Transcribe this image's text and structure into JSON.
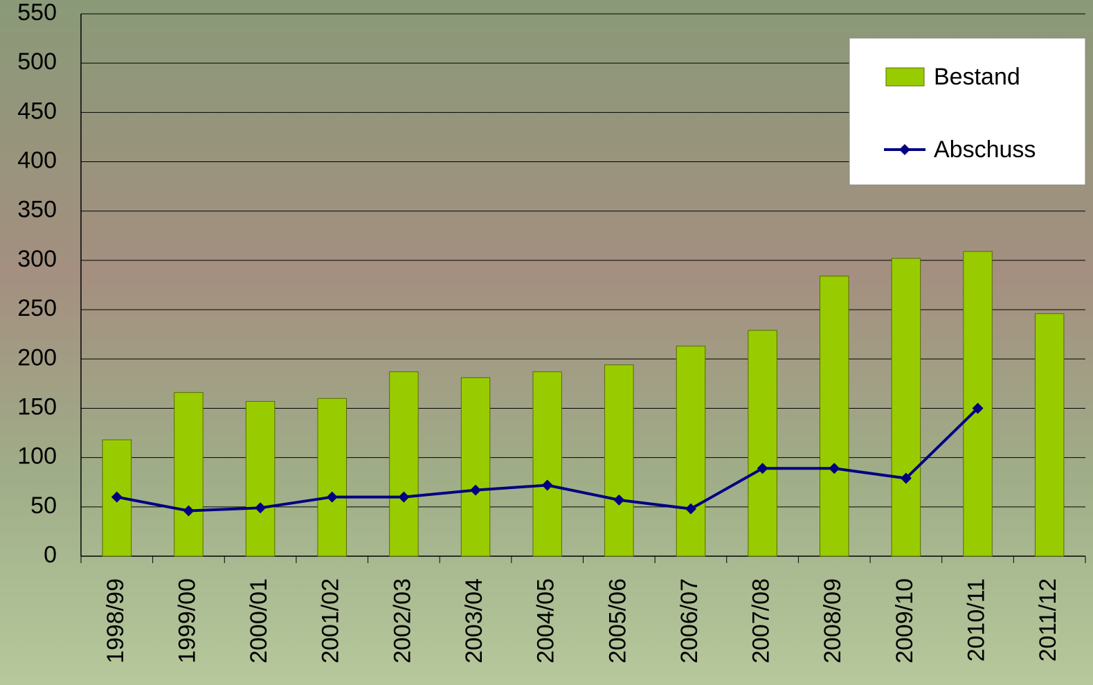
{
  "chart_data": {
    "type": "bar-line",
    "categories": [
      "1998/99",
      "1999/00",
      "2000/01",
      "2001/02",
      "2002/03",
      "2003/04",
      "2004/05",
      "2005/06",
      "2006/07",
      "2007/08",
      "2008/09",
      "2009/10",
      "2010/11",
      "2011/12"
    ],
    "series": [
      {
        "name": "Bestand",
        "type": "bar",
        "color": "#99cc00",
        "values": [
          118,
          166,
          157,
          160,
          187,
          181,
          187,
          194,
          213,
          229,
          284,
          302,
          309,
          246
        ]
      },
      {
        "name": "Abschuss",
        "type": "line",
        "color": "#000080",
        "values": [
          60,
          46,
          49,
          60,
          60,
          67,
          72,
          57,
          48,
          89,
          89,
          79,
          150,
          null
        ]
      }
    ],
    "ylim": [
      0,
      550
    ],
    "yticks": [
      0,
      50,
      100,
      150,
      200,
      250,
      300,
      350,
      400,
      450,
      500,
      550
    ],
    "grid": true,
    "legend": "top-right"
  }
}
